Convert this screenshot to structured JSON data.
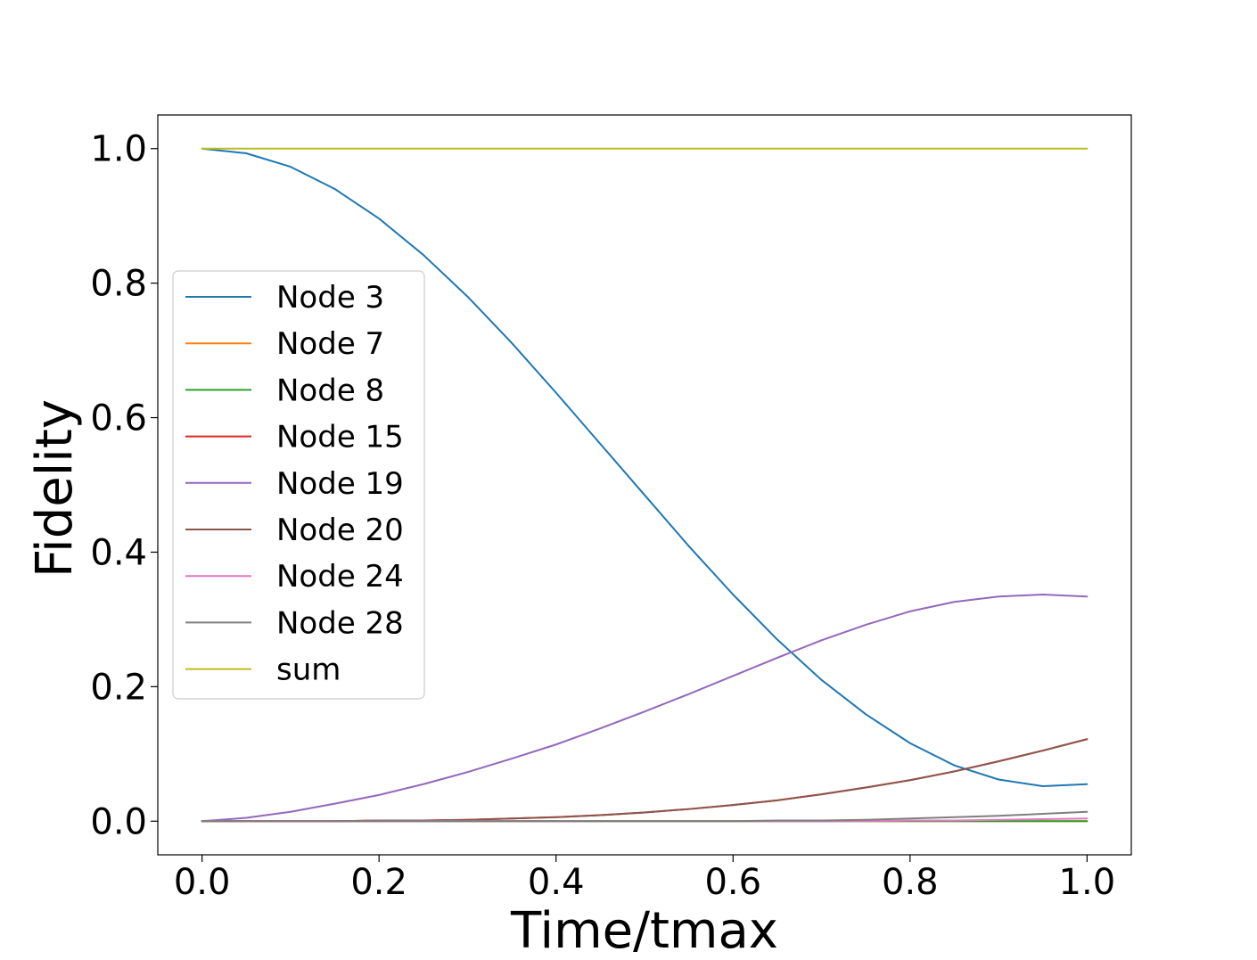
{
  "chart_data": {
    "type": "line",
    "title": "",
    "xlabel": "Time/tmax",
    "ylabel": "Fidelity",
    "xlim": [
      -0.05,
      1.05
    ],
    "ylim": [
      -0.05,
      1.05
    ],
    "xticks": [
      0.0,
      0.2,
      0.4,
      0.6,
      0.8,
      1.0
    ],
    "yticks": [
      0.0,
      0.2,
      0.4,
      0.6,
      0.8,
      1.0
    ],
    "xtick_labels": [
      "0.0",
      "0.2",
      "0.4",
      "0.6",
      "0.8",
      "1.0"
    ],
    "ytick_labels": [
      "0.0",
      "0.2",
      "0.4",
      "0.6",
      "0.8",
      "1.0"
    ],
    "grid": false,
    "legend_position": "center-left",
    "x": [
      0.0,
      0.05,
      0.1,
      0.15,
      0.2,
      0.25,
      0.3,
      0.35,
      0.4,
      0.45,
      0.5,
      0.55,
      0.6,
      0.65,
      0.7,
      0.75,
      0.8,
      0.85,
      0.9,
      0.95,
      1.0
    ],
    "series": [
      {
        "name": "Node 3",
        "color": "#1f77b4",
        "values": [
          1.0,
          0.993,
          0.973,
          0.94,
          0.896,
          0.842,
          0.78,
          0.711,
          0.637,
          0.561,
          0.485,
          0.409,
          0.337,
          0.27,
          0.21,
          0.159,
          0.116,
          0.083,
          0.062,
          0.052,
          0.055
        ]
      },
      {
        "name": "Node 7",
        "color": "#ff7f0e",
        "values": [
          0.0,
          0.0,
          0.0,
          0.0,
          0.0,
          0.0,
          0.0,
          0.0,
          0.0,
          0.0,
          0.0,
          0.0,
          0.0,
          0.0,
          0.0,
          0.0,
          0.0,
          0.0,
          0.0,
          0.0,
          0.0
        ]
      },
      {
        "name": "Node 8",
        "color": "#2ca02c",
        "values": [
          0.0,
          0.0,
          0.0,
          0.0,
          0.0,
          0.0,
          0.0,
          0.0,
          0.0,
          0.0,
          0.0,
          0.0,
          0.0,
          0.0,
          0.0,
          0.0,
          0.0,
          0.0,
          0.0,
          0.0,
          0.0
        ]
      },
      {
        "name": "Node 15",
        "color": "#d62728",
        "values": [
          0.0,
          0.0,
          0.0,
          0.0,
          0.001,
          0.001,
          0.002,
          0.004,
          0.006,
          0.009,
          0.013,
          0.018,
          0.024,
          0.031,
          0.04,
          0.05,
          0.061,
          0.074,
          0.089,
          0.105,
          0.122
        ]
      },
      {
        "name": "Node 19",
        "color": "#9467bd",
        "values": [
          0.0,
          0.005,
          0.014,
          0.026,
          0.039,
          0.055,
          0.073,
          0.093,
          0.114,
          0.138,
          0.163,
          0.189,
          0.216,
          0.243,
          0.269,
          0.292,
          0.312,
          0.326,
          0.334,
          0.337,
          0.334
        ]
      },
      {
        "name": "Node 20",
        "color": "#8c564b",
        "values": [
          0.0,
          0.0,
          0.0,
          0.0,
          0.001,
          0.001,
          0.002,
          0.004,
          0.006,
          0.009,
          0.013,
          0.018,
          0.024,
          0.031,
          0.04,
          0.05,
          0.061,
          0.074,
          0.089,
          0.105,
          0.122
        ]
      },
      {
        "name": "Node 24",
        "color": "#e377c2",
        "values": [
          0.0,
          0.0,
          0.0,
          0.0,
          0.0,
          0.0,
          0.0,
          0.0,
          0.0,
          0.0,
          0.0,
          0.0,
          0.0,
          0.0,
          0.0,
          0.0,
          0.001,
          0.001,
          0.002,
          0.003,
          0.004
        ]
      },
      {
        "name": "Node 28",
        "color": "#7f7f7f",
        "values": [
          0.0,
          0.0,
          0.0,
          0.0,
          0.0,
          0.0,
          0.0,
          0.0,
          0.0,
          0.0,
          0.0,
          0.0,
          0.0,
          0.001,
          0.001,
          0.002,
          0.004,
          0.006,
          0.008,
          0.011,
          0.014
        ]
      },
      {
        "name": "sum",
        "color": "#bcbd22",
        "values": [
          1.0,
          1.0,
          1.0,
          1.0,
          1.0,
          1.0,
          1.0,
          1.0,
          1.0,
          1.0,
          1.0,
          1.0,
          1.0,
          1.0,
          1.0,
          1.0,
          1.0,
          1.0,
          1.0,
          1.0,
          1.0
        ]
      }
    ]
  }
}
